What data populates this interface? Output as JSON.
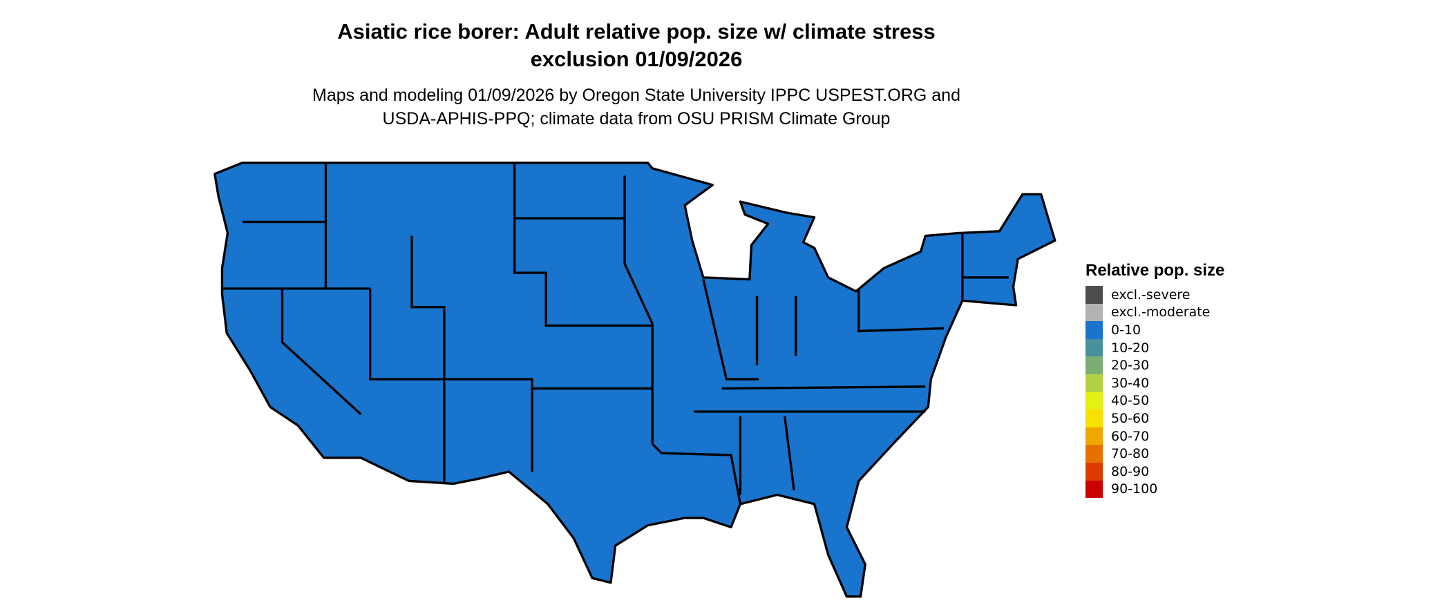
{
  "title": {
    "line1": "Asiatic rice borer: Adult relative pop. size w/ climate stress",
    "line2": "exclusion 01/09/2026"
  },
  "subtitle": {
    "line1": "Maps and modeling 01/09/2026 by Oregon State University IPPC USPEST.ORG and",
    "line2": "USDA-APHIS-PPQ; climate data from OSU PRISM Climate Group"
  },
  "map": {
    "region": "conterminous-us",
    "fill_category": "0-10",
    "fill_color": "#1874CD",
    "border_color": "#000000"
  },
  "legend": {
    "title": "Relative pop. size",
    "items": [
      {
        "label": "excl.-severe",
        "color": "#4D4D4D"
      },
      {
        "label": "excl.-moderate",
        "color": "#B3B3B3"
      },
      {
        "label": "0-10",
        "color": "#1874CD"
      },
      {
        "label": "10-20",
        "color": "#47919B"
      },
      {
        "label": "20-30",
        "color": "#7BAE73"
      },
      {
        "label": "30-40",
        "color": "#B3D145"
      },
      {
        "label": "40-50",
        "color": "#E5F015"
      },
      {
        "label": "50-60",
        "color": "#F8E000"
      },
      {
        "label": "60-70",
        "color": "#F0A800"
      },
      {
        "label": "70-80",
        "color": "#E57200"
      },
      {
        "label": "80-90",
        "color": "#DC3A00"
      },
      {
        "label": "90-100",
        "color": "#CC0000"
      }
    ]
  }
}
